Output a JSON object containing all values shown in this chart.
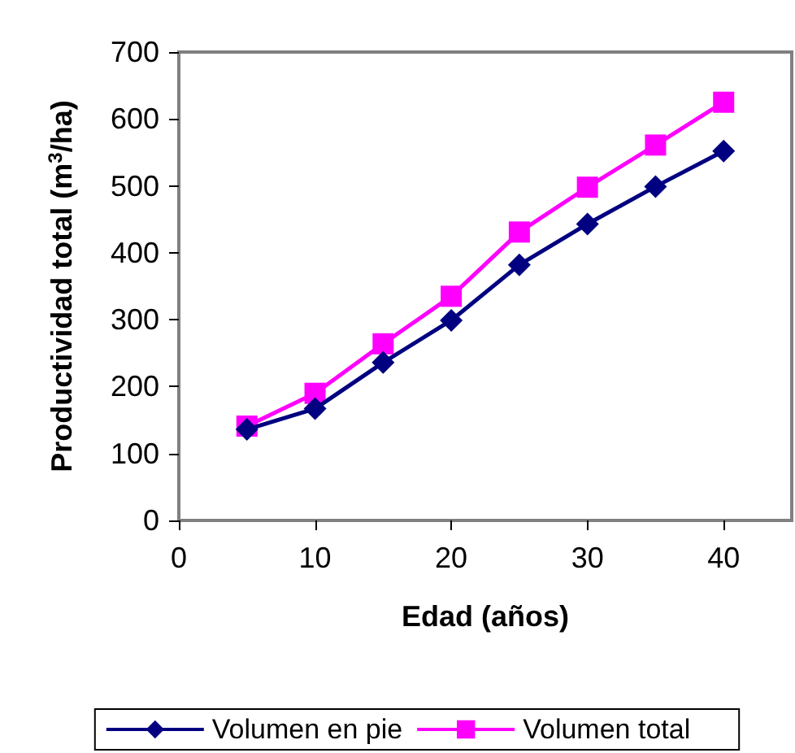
{
  "chart_data": {
    "type": "line",
    "xlabel": "Edad (años)",
    "ylabel": "Productividad total (m$^{3}$/ha)",
    "x": [
      5,
      10,
      15,
      20,
      25,
      30,
      35,
      40
    ],
    "series": [
      {
        "name": "Volumen en pie",
        "color": "#000080",
        "marker": "diamond",
        "values": [
          136,
          167,
          236,
          299,
          382,
          443,
          499,
          552
        ]
      },
      {
        "name": "Volumen total",
        "color": "#ff00ff",
        "marker": "square",
        "values": [
          141,
          190,
          264,
          335,
          431,
          498,
          561,
          625
        ]
      }
    ],
    "xlim": [
      0,
      45
    ],
    "xticks": [
      0,
      10,
      20,
      30,
      40
    ],
    "ylim": [
      0,
      700
    ],
    "yticks": [
      0,
      100,
      200,
      300,
      400,
      500,
      600,
      700
    ],
    "grid": false,
    "legend": "bottom",
    "line_style": "solid"
  }
}
